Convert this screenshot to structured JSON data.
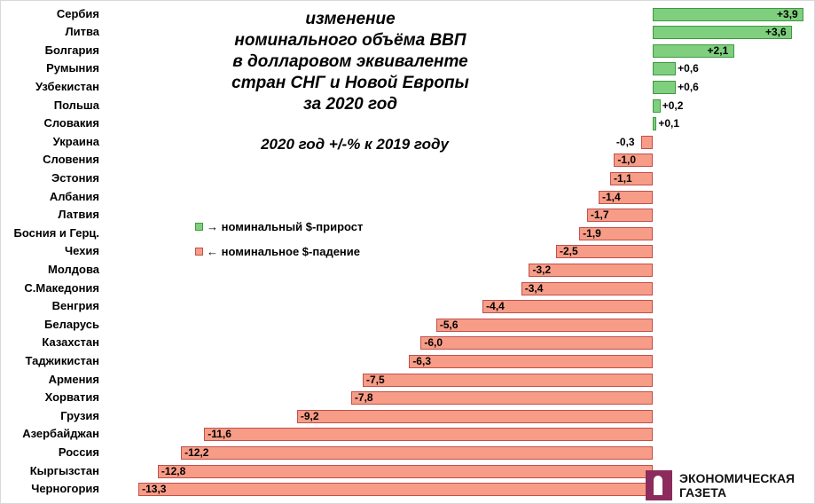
{
  "title_lines": [
    "изменение",
    "номинального объёма ВВП",
    "в долларовом эквиваленте",
    "стран СНГ и Новой Европы",
    "за 2020 год"
  ],
  "subtitle": "2020 год  +/-% к 2019 году",
  "legend": {
    "growth": "→ номинальный $-прирост",
    "decline": "← номинальное $-падение"
  },
  "logo": {
    "line1": "ЭКОНОМИЧЕСКАЯ",
    "line2": "ГАЗЕТА"
  },
  "colors": {
    "positive": "#7fcf7f",
    "negative": "#f79c86"
  },
  "chart_data": {
    "type": "bar",
    "orientation": "horizontal",
    "title": "изменение номинального объёма ВВП в долларовом эквиваленте стран СНГ и Новой Европы за 2020 год",
    "subtitle": "2020 год +/-% к 2019 году",
    "xlabel": "",
    "ylabel": "",
    "unit": "%",
    "grid": false,
    "legend": [
      "→ номинальный $-прирост",
      "← номинальное $-падение"
    ],
    "categories": [
      "Сербия",
      "Литва",
      "Болгария",
      "Румыния",
      "Узбекистан",
      "Польша",
      "Словакия",
      "Украина",
      "Словения",
      "Эстония",
      "Албания",
      "Латвия",
      "Босния и Герц.",
      "Чехия",
      "Молдова",
      "С.Македония",
      "Венгрия",
      "Беларусь",
      "Казахстан",
      "Таджикистан",
      "Армения",
      "Хорватия",
      "Грузия",
      "Азербайджан",
      "Россия",
      "Кыргызстан",
      "Черногория"
    ],
    "values": [
      3.9,
      3.6,
      2.1,
      0.6,
      0.6,
      0.2,
      0.1,
      -0.3,
      -1.0,
      -1.1,
      -1.4,
      -1.7,
      -1.9,
      -2.5,
      -3.2,
      -3.4,
      -4.4,
      -5.6,
      -6.0,
      -6.3,
      -7.5,
      -7.8,
      -9.2,
      -11.6,
      -12.2,
      -12.8,
      -13.3
    ],
    "labels": [
      "+3,9",
      "+3,6",
      "+2,1",
      "+0,6",
      "+0,6",
      "+0,2",
      "+0,1",
      "-0,3",
      "-1,0",
      "-1,1",
      "-1,4",
      "-1,7",
      "-1,9",
      "-2,5",
      "-3,2",
      "-3,4",
      "-4,4",
      "-5,6",
      "-6,0",
      "-6,3",
      "-7,5",
      "-7,8",
      "-9,2",
      "-11,6",
      "-12,2",
      "-12,8",
      "-13,3"
    ],
    "xlim": [
      -13.3,
      3.9
    ]
  }
}
